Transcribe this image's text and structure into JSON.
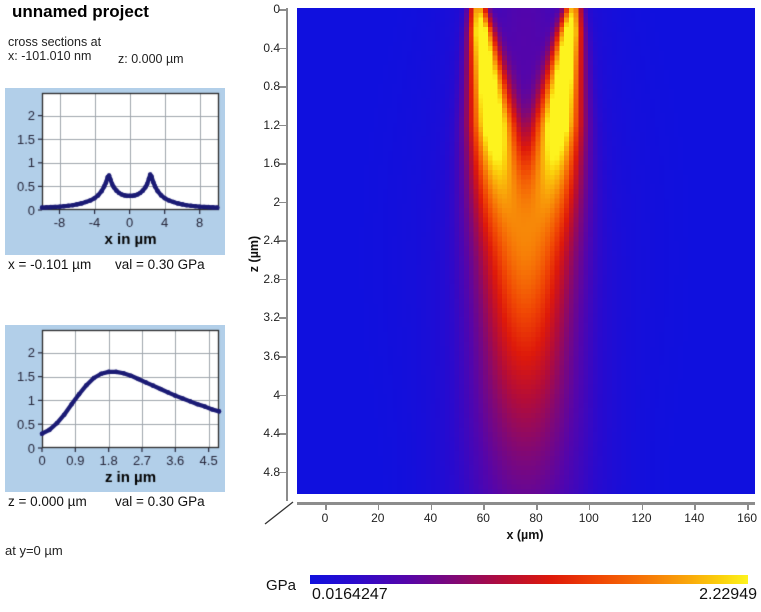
{
  "window": {
    "title": "unnamed project"
  },
  "header": {
    "line1": "cross sections at",
    "x_readout": "x: -101.010 nm",
    "z_readout": "z: 0.000 µm"
  },
  "readout_x": {
    "pos": "x = -0.101 µm",
    "val": "val = 0.30 GPa"
  },
  "readout_z": {
    "pos": "z = 0.000 µm",
    "val": "val = 0.30 GPa"
  },
  "y_plane_note": "at  y=0 µm",
  "colors": {
    "panel_bg": "#b2cfe9",
    "curve": "#1b1b75",
    "grid": "#a0a6ad",
    "frame": "#2b2b2b",
    "axis_gray": "#8c8c8c",
    "heatmap_background_blue": "#1010de",
    "heatmap_peak_yellow": "#fdf31e"
  },
  "colorbar": {
    "unit": "GPa",
    "min_label": "0.0164247",
    "max_label": "2.22949"
  },
  "chart_data": [
    {
      "type": "line",
      "title": "",
      "xlabel": "x in µm",
      "ylabel": "",
      "xlim": [
        -10,
        10.2
      ],
      "ylim": [
        0,
        2.48
      ],
      "xticks": [
        -8,
        -4,
        0,
        4,
        8
      ],
      "yticks": [
        0,
        0.5,
        1,
        1.5,
        2
      ],
      "grid": true,
      "line_color": "#1b1b75",
      "x": [
        -10,
        -9.5,
        -9,
        -8.5,
        -8,
        -7.5,
        -7,
        -6.5,
        -6,
        -5.5,
        -5,
        -4.5,
        -4,
        -3.6,
        -3.2,
        -2.9,
        -2.7,
        -2.5,
        -2.35,
        -2.2,
        -2,
        -1.8,
        -1.5,
        -1.2,
        -0.9,
        -0.6,
        -0.3,
        0,
        0.3,
        0.6,
        0.9,
        1.2,
        1.5,
        1.8,
        2,
        2.2,
        2.35,
        2.5,
        2.7,
        2.9,
        3.2,
        3.6,
        4,
        4.5,
        5,
        5.5,
        6,
        6.5,
        7,
        7.5,
        8,
        8.5,
        9,
        9.5,
        10
      ],
      "y": [
        0.05,
        0.055,
        0.06,
        0.065,
        0.07,
        0.08,
        0.09,
        0.1,
        0.12,
        0.14,
        0.17,
        0.2,
        0.25,
        0.31,
        0.4,
        0.5,
        0.58,
        0.7,
        0.73,
        0.65,
        0.55,
        0.48,
        0.41,
        0.36,
        0.33,
        0.31,
        0.3,
        0.3,
        0.3,
        0.31,
        0.33,
        0.36,
        0.41,
        0.48,
        0.55,
        0.66,
        0.75,
        0.71,
        0.59,
        0.5,
        0.4,
        0.31,
        0.25,
        0.2,
        0.17,
        0.14,
        0.12,
        0.1,
        0.09,
        0.08,
        0.07,
        0.065,
        0.06,
        0.055,
        0.05
      ]
    },
    {
      "type": "line",
      "title": "",
      "xlabel": "z in µm",
      "ylabel": "",
      "xlim": [
        0,
        4.78
      ],
      "ylim": [
        0,
        2.48
      ],
      "xticks": [
        0,
        0.9,
        1.8,
        2.7,
        3.6,
        4.5
      ],
      "yticks": [
        0,
        0.5,
        1,
        1.5,
        2
      ],
      "grid": true,
      "line_color": "#1b1b75",
      "x": [
        0,
        0.2,
        0.4,
        0.6,
        0.8,
        1.0,
        1.2,
        1.4,
        1.6,
        1.8,
        2.0,
        2.2,
        2.4,
        2.6,
        2.8,
        3.0,
        3.2,
        3.4,
        3.6,
        3.8,
        4.0,
        4.2,
        4.4,
        4.6,
        4.78
      ],
      "y": [
        0.3,
        0.38,
        0.52,
        0.7,
        0.92,
        1.13,
        1.32,
        1.47,
        1.56,
        1.6,
        1.6,
        1.57,
        1.52,
        1.45,
        1.38,
        1.31,
        1.24,
        1.17,
        1.1,
        1.04,
        0.98,
        0.92,
        0.87,
        0.81,
        0.77
      ]
    },
    {
      "type": "heatmap",
      "title": "",
      "xlabel": "x (µm)",
      "ylabel": "z (µm)",
      "value_unit": "GPa",
      "value_min": 0.0164247,
      "value_max": 2.22949,
      "x_range": [
        -10.6,
        163.0
      ],
      "z_range": [
        0,
        5.05
      ],
      "xticks": [
        0,
        20,
        40,
        60,
        80,
        100,
        120,
        140,
        160
      ],
      "zticks": [
        0,
        0.4,
        0.8,
        1.2,
        1.6,
        2,
        2.4,
        2.8,
        3.2,
        3.6,
        4,
        4.4,
        4.8
      ],
      "hot_spot_x_um": [
        58,
        94
      ],
      "model": {
        "center_x": 76,
        "half_separation": 18,
        "converge_depth": 4.3,
        "converge_pow": 1.1,
        "sigma0": 2.4,
        "sigma_growth": 3.1,
        "amp": 2.3,
        "surface_rise_base": 0.74,
        "surface_rise_slope": 1.05,
        "decay_start": 1.2,
        "decay_tau": 2.0,
        "blend_pow": 1.5,
        "bg1": {
          "a": 0.42,
          "sx": 15,
          "z0": 0.1,
          "sz": 1.3
        },
        "bg2": {
          "a": 0.18,
          "sx": 30,
          "z0": 2.6,
          "sz": 1.8
        }
      },
      "colormap": [
        [
          0.0,
          [
            16,
            16,
            222
          ]
        ],
        [
          0.1,
          [
            42,
            10,
            205
          ]
        ],
        [
          0.22,
          [
            85,
            5,
            170
          ]
        ],
        [
          0.33,
          [
            128,
            8,
            118
          ]
        ],
        [
          0.44,
          [
            178,
            12,
            58
          ]
        ],
        [
          0.55,
          [
            222,
            25,
            10
          ]
        ],
        [
          0.66,
          [
            240,
            70,
            4
          ]
        ],
        [
          0.76,
          [
            246,
            115,
            6
          ]
        ],
        [
          0.86,
          [
            249,
            165,
            10
          ]
        ],
        [
          0.94,
          [
            251,
            210,
            12
          ]
        ],
        [
          1.0,
          [
            253,
            243,
            30
          ]
        ]
      ]
    }
  ]
}
